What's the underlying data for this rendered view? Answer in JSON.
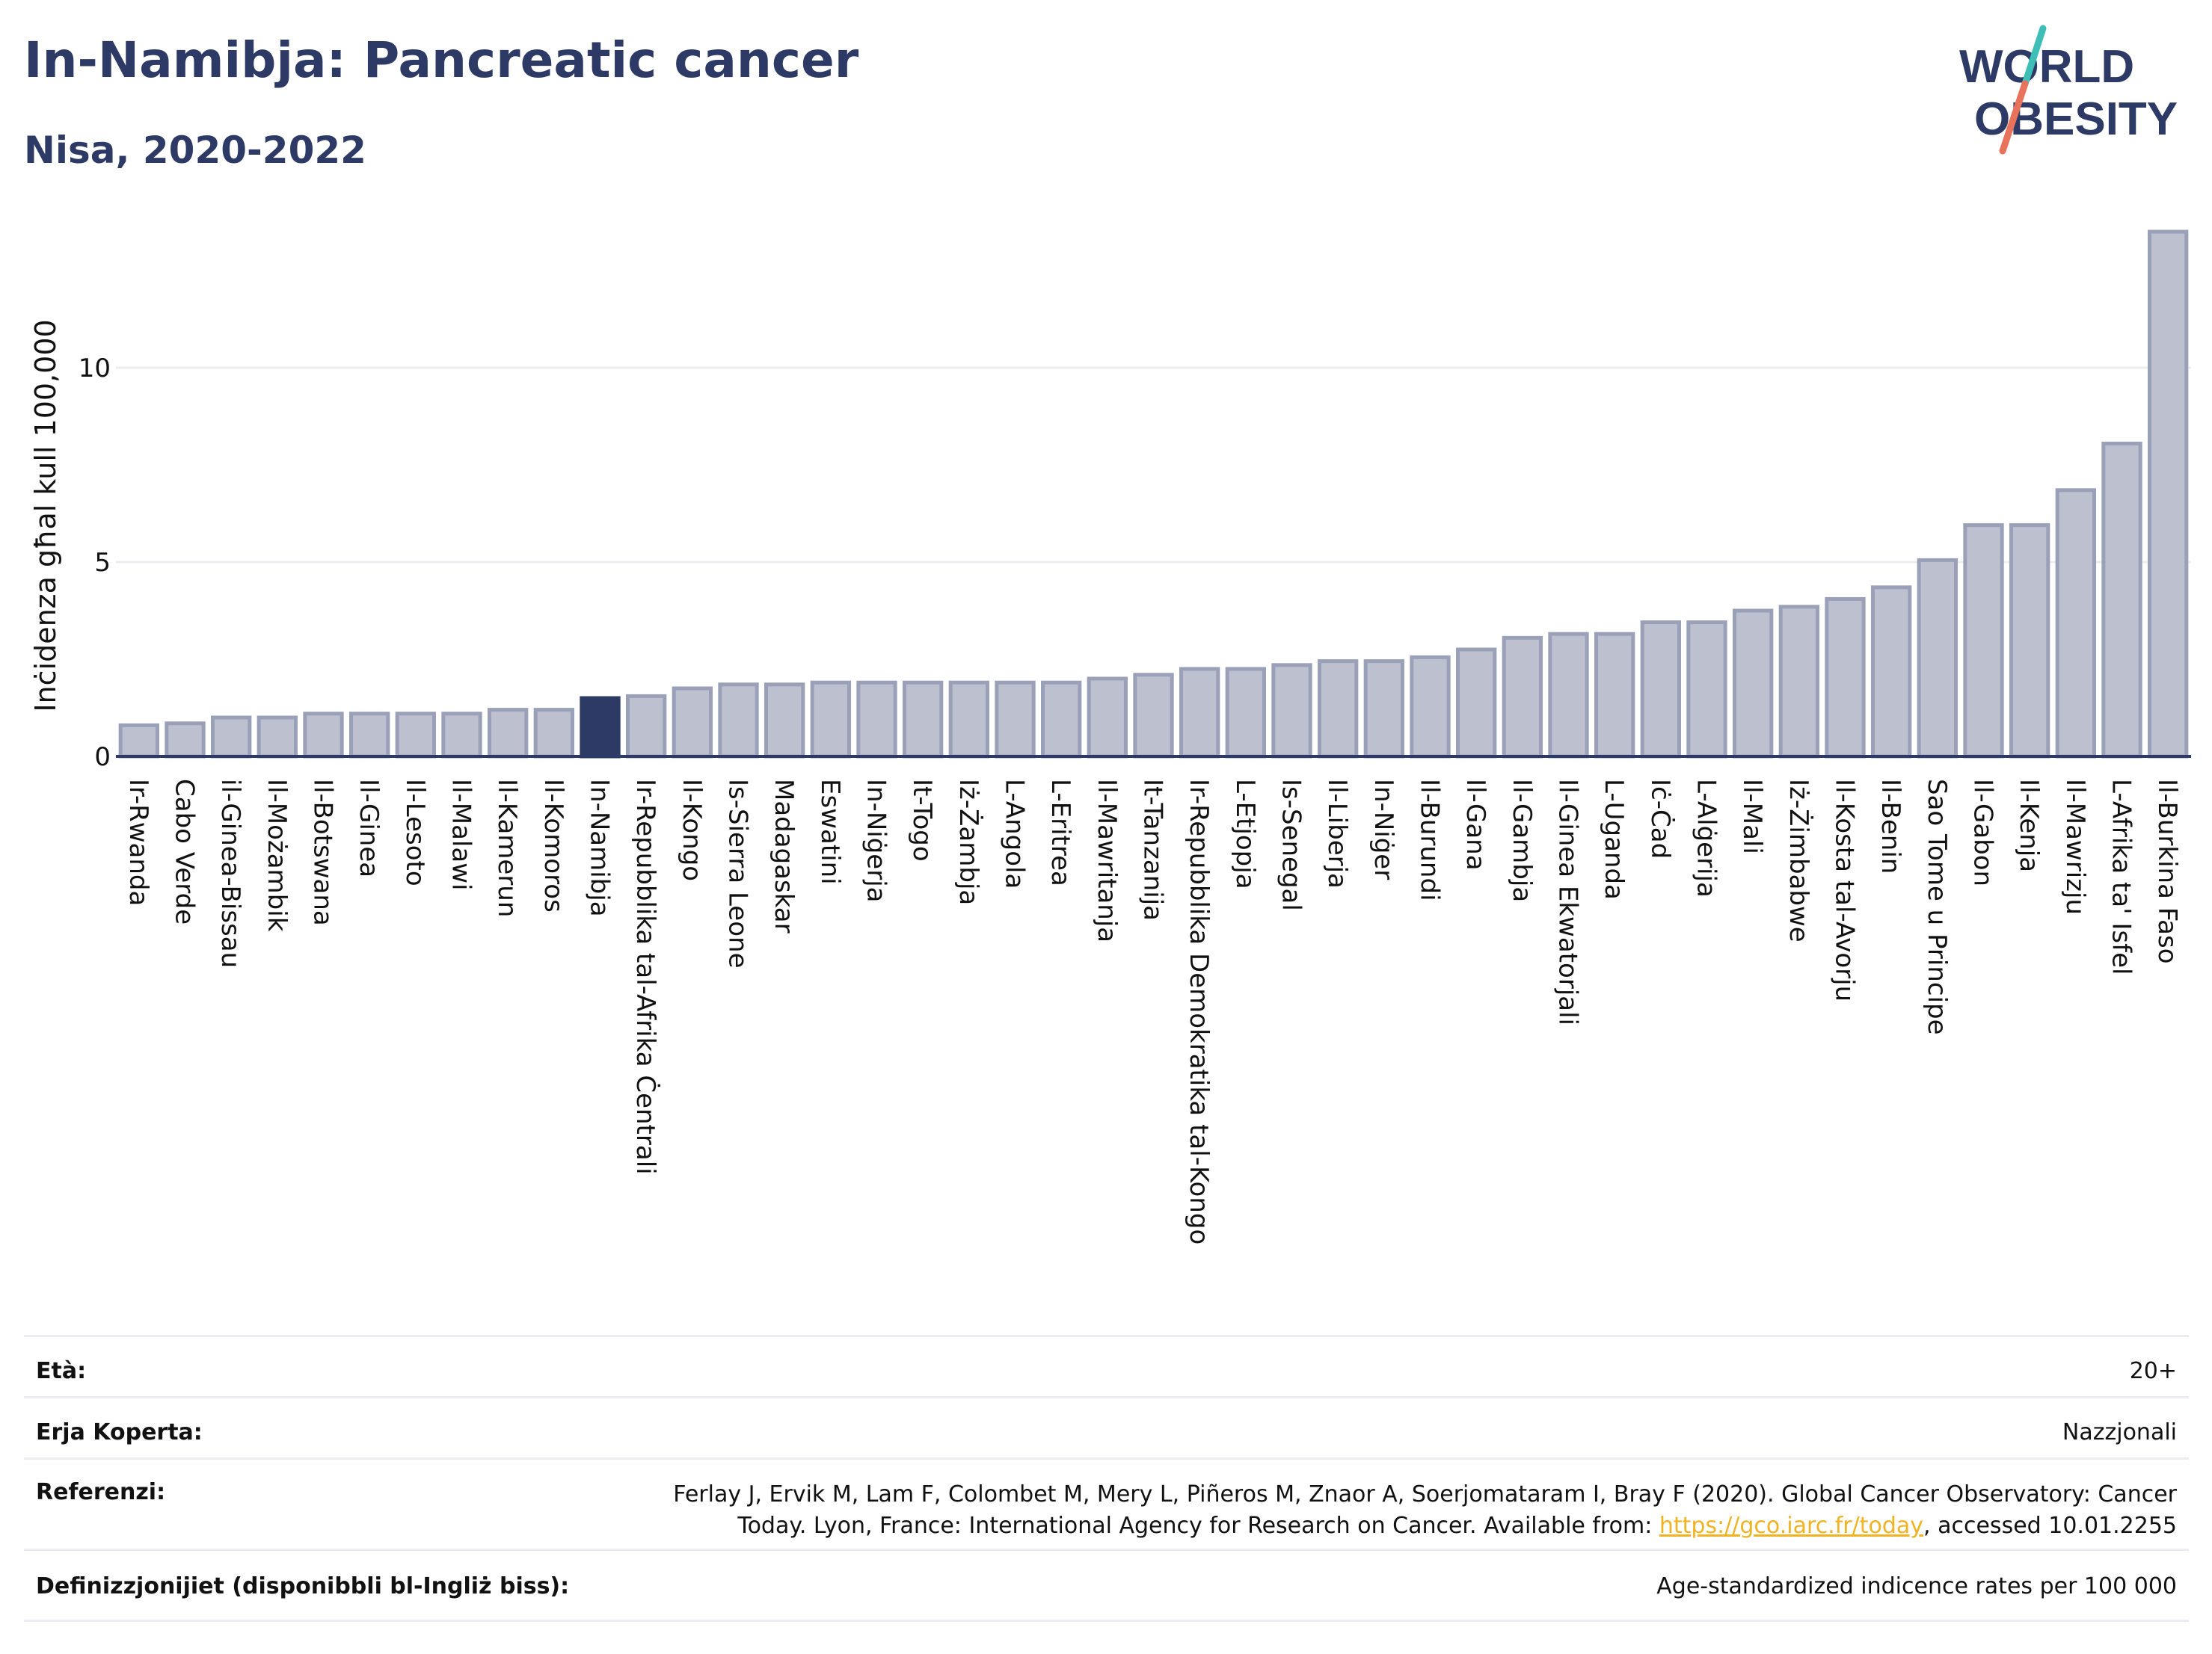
{
  "header": {
    "title": "In-Namibja: Pancreatic cancer",
    "subtitle": "Nisa, 2020-2022"
  },
  "logo": {
    "line1": "WORLD",
    "line2": "OBESITY",
    "colors": {
      "text": "#2d3a66",
      "slash_top": "#3dbfb8",
      "slash_bottom": "#e8735a"
    }
  },
  "colors": {
    "bar": "#bcc0cf",
    "bar_border": "#9aa0b8",
    "highlight": "#2d3a66",
    "text": "#2d3a66",
    "axis": "#2d3a66",
    "grid": "#ececf2",
    "link": "#f0b323"
  },
  "chart_data": {
    "type": "bar",
    "title": "In-Namibja: Pancreatic cancer",
    "subtitle": "Nisa, 2020-2022",
    "ylabel": "Inċidenza għal kull 100,000",
    "xlabel": "",
    "ylim": [
      0,
      14
    ],
    "yticks": [
      0,
      5,
      10
    ],
    "grid": true,
    "highlight": "In-Namibja",
    "categories": [
      "Ir-Rwanda",
      "Cabo Verde",
      "il-Ginea-Bissau",
      "Il-Możambik",
      "Il-Botswana",
      "Il-Ginea",
      "Il-Lesoto",
      "Il-Malawi",
      "Il-Kamerun",
      "Il-Komoros",
      "In-Namibja",
      "Ir-Repubblika tal-Afrika Ċentrali",
      "Il-Kongo",
      "Is-Sierra Leone",
      "Madagaskar",
      "Eswatini",
      "In-Niġerja",
      "It-Togo",
      "Iż-Żambja",
      "L-Angola",
      "L-Eritrea",
      "Il-Mawritanja",
      "It-Tanzanija",
      "Ir-Repubblika Demokratika tal-Kongo",
      "L-Etjopja",
      "Is-Senegal",
      "Il-Liberja",
      "In-Niġer",
      "Il-Burundi",
      "Il-Gana",
      "Il-Gambja",
      "Il-Ginea Ekwatorjali",
      "L-Uganda",
      "Iċ-Ċad",
      "L-Alġerija",
      "Il-Mali",
      "Iż-Żimbabwe",
      "Il-Kosta tal-Avorju",
      "Il-Benin",
      "Sao Tome u Principe",
      "Il-Gabon",
      "Il-Kenja",
      "Il-Mawrizju",
      "L-Afrika tа' Isfel",
      "Il-Burkina Faso"
    ],
    "values": [
      0.8,
      0.85,
      1.0,
      1.0,
      1.1,
      1.1,
      1.1,
      1.1,
      1.2,
      1.2,
      1.5,
      1.55,
      1.75,
      1.85,
      1.85,
      1.9,
      1.9,
      1.9,
      1.9,
      1.9,
      1.9,
      2.0,
      2.1,
      2.25,
      2.25,
      2.35,
      2.45,
      2.45,
      2.55,
      2.75,
      3.05,
      3.15,
      3.15,
      3.45,
      3.45,
      3.75,
      3.85,
      4.05,
      4.35,
      5.05,
      5.95,
      5.95,
      6.85,
      8.05,
      13.5
    ]
  },
  "meta": {
    "rows": [
      {
        "label": "Età:",
        "value": "20+"
      },
      {
        "label": "Erja Koperta:",
        "value": "Nazzjonali"
      },
      {
        "label": "Referenzi:",
        "value_line1": "Ferlay J, Ervik M, Lam F, Colombet M, Mery L, Piñeros M, Znaor A, Soerjomataram I, Bray F (2020). Global Cancer Observatory: Cancer",
        "value_line2_pre": "Today. Lyon, France: International Agency for Research on Cancer. Available from: ",
        "link": "https://gco.iarc.fr/today",
        "value_line2_post": ", accessed 10.01.2255"
      },
      {
        "label": "Definizzjonijiet (disponibbli bl-Ingliż biss):",
        "value": "Age-standardized indicence rates per 100 000"
      }
    ]
  }
}
